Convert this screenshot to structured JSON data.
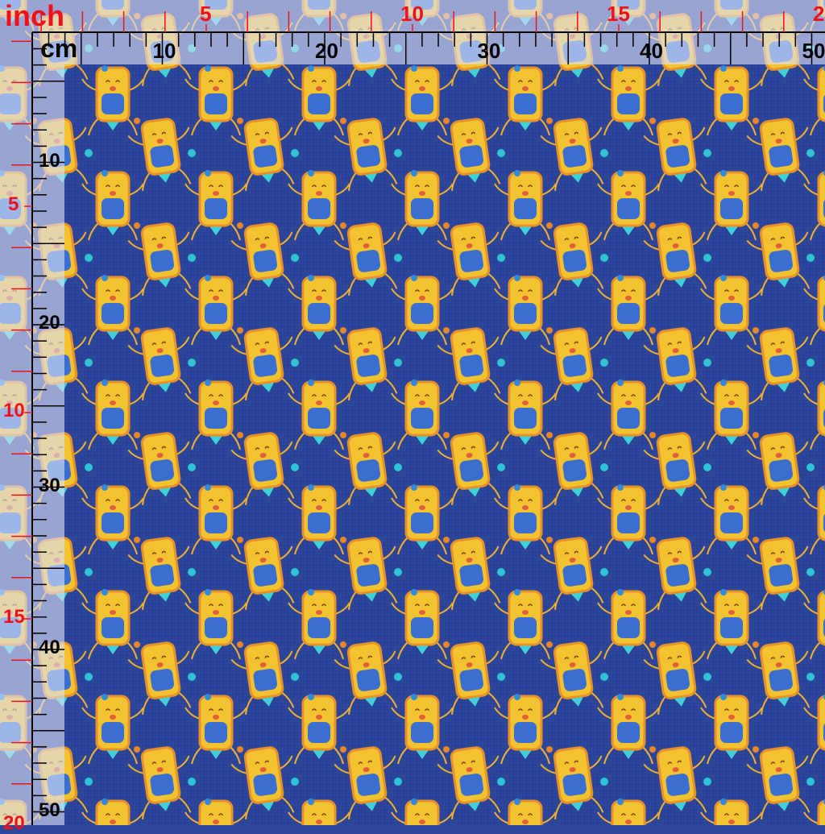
{
  "rulers": {
    "inch_unit_label": "inch",
    "cm_unit_label": "cm",
    "inch_labels": [
      "5",
      "10",
      "15",
      "20"
    ],
    "cm_labels": [
      "10",
      "20",
      "30",
      "40",
      "50"
    ],
    "inch_color": "#f0101a",
    "cm_color": "#000000"
  },
  "fabric": {
    "background_color": "#2c469c",
    "motif": "yellow-cup-character-icon",
    "motif_colors": [
      "#f2c230",
      "#e8912a",
      "#3a6fd0",
      "#3fd0d8"
    ],
    "dot_colors": [
      "#2ec4d6",
      "#e8842a",
      "#2f8ae0"
    ]
  }
}
